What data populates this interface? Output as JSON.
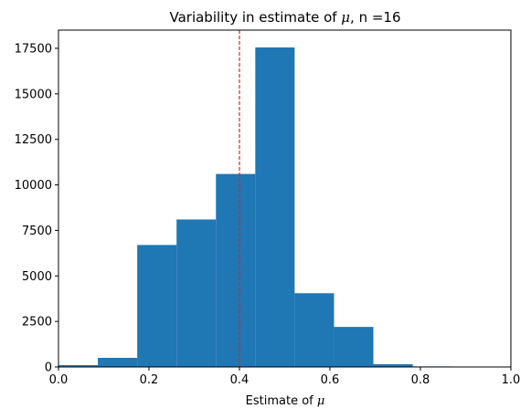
{
  "chart_data": {
    "type": "bar",
    "title_prefix": "Variability in estimate of ",
    "title_symbol": "μ",
    "title_suffix": ", n =16",
    "xlabel_prefix": "Estimate of ",
    "xlabel_symbol": "μ",
    "ylabel": "",
    "xlim": [
      0.0,
      1.0
    ],
    "ylim": [
      0,
      18500
    ],
    "x_ticks": [
      "0.0",
      "0.2",
      "0.4",
      "0.6",
      "0.8",
      "1.0"
    ],
    "y_ticks": [
      "0",
      "2500",
      "5000",
      "7500",
      "10000",
      "12500",
      "15000",
      "17500"
    ],
    "bins": [
      {
        "x0": 0.0,
        "x1": 0.087,
        "count": 100
      },
      {
        "x0": 0.087,
        "x1": 0.174,
        "count": 500
      },
      {
        "x0": 0.174,
        "x1": 0.261,
        "count": 6700
      },
      {
        "x0": 0.261,
        "x1": 0.348,
        "count": 8100
      },
      {
        "x0": 0.348,
        "x1": 0.435,
        "count": 10600
      },
      {
        "x0": 0.435,
        "x1": 0.522,
        "count": 17550
      },
      {
        "x0": 0.522,
        "x1": 0.609,
        "count": 4050
      },
      {
        "x0": 0.609,
        "x1": 0.696,
        "count": 2200
      },
      {
        "x0": 0.696,
        "x1": 0.783,
        "count": 150
      },
      {
        "x0": 0.783,
        "x1": 0.87,
        "count": 30
      }
    ],
    "reference_line": {
      "x": 0.4,
      "color": "#d62728",
      "style": "dashed"
    },
    "bar_color": "#1f77b4",
    "grid": false
  }
}
